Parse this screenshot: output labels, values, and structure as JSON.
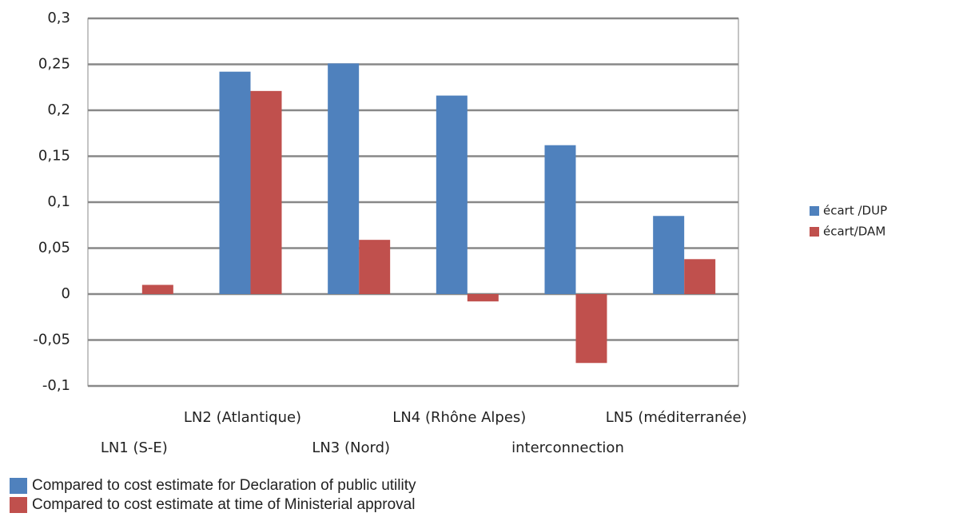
{
  "chart_data": {
    "type": "bar",
    "categories": [
      "LN1 (S-E)",
      "LN2 (Atlantique)",
      "LN3 (Nord)",
      "LN4 (Rhône Alpes)",
      "interconnection",
      "LN5 (méditerranée)"
    ],
    "series": [
      {
        "name": "écart /DUP",
        "color": "#4f81bd",
        "values": [
          null,
          0.242,
          0.251,
          0.216,
          0.162,
          0.085
        ]
      },
      {
        "name": "écart/DAM",
        "color": "#c0504d",
        "values": [
          0.01,
          0.221,
          0.059,
          -0.008,
          -0.075,
          0.038
        ]
      }
    ],
    "ylim": [
      -0.1,
      0.3
    ],
    "yticks": [
      {
        "value": -0.1,
        "label": "-0,1"
      },
      {
        "value": -0.05,
        "label": "-0,05"
      },
      0,
      {
        "value": 0.05,
        "label": "0,05"
      },
      {
        "value": 0.1,
        "label": "0,1"
      },
      {
        "value": 0.15,
        "label": "0,15"
      },
      {
        "value": 0.2,
        "label": "0,2"
      },
      {
        "value": 0.25,
        "label": "0,25"
      },
      {
        "value": 0.3,
        "label": "0,3"
      }
    ],
    "grid": true,
    "legend": "right",
    "annotations": [
      {
        "text": "Compared to cost estimate for Declaration of public utility",
        "color": "#4f81bd"
      },
      {
        "text": "Compared to cost estimate at time of Ministerial approval",
        "color": "#c0504d"
      }
    ]
  }
}
